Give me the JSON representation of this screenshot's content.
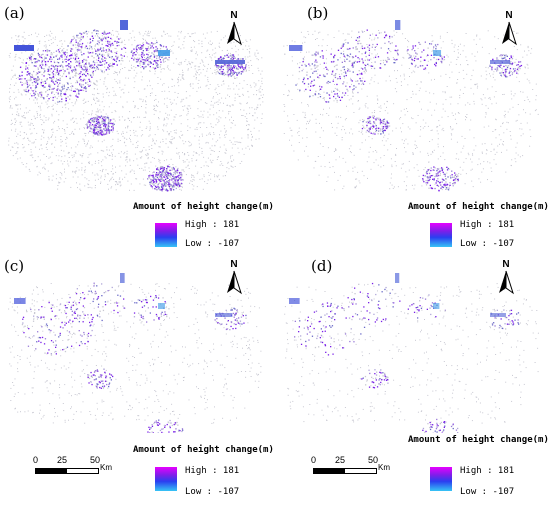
{
  "panels": [
    {
      "label": "(a)",
      "legend": {
        "title": "Amount of height change(m)",
        "high": "High : 181",
        "low": "Low : -107"
      },
      "north": "N",
      "density": 1.0
    },
    {
      "label": "(b)",
      "legend": {
        "title": "Amount of height change(m)",
        "high": "High : 181",
        "low": "Low : -107"
      },
      "north": "N",
      "density": 0.45
    },
    {
      "label": "(c)",
      "legend": {
        "title": "Amount of height change(m)",
        "high": "High : 181",
        "low": "Low : -107"
      },
      "north": "N",
      "density": 0.3,
      "scale": {
        "ticks": [
          "0",
          "25",
          "50"
        ],
        "unit": "Km"
      }
    },
    {
      "label": "(d)",
      "legend": {
        "title": "Amount of height change(m)",
        "high": "High : 181",
        "low": "Low : -107"
      },
      "north": "N",
      "density": 0.22,
      "scale": {
        "ticks": [
          "0",
          "25",
          "50"
        ],
        "unit": "Km"
      }
    }
  ],
  "colors": {
    "high": "#e600ff",
    "mid": "#7a20e8",
    "low": "#37c4f5",
    "road": "#c8c8d2"
  }
}
